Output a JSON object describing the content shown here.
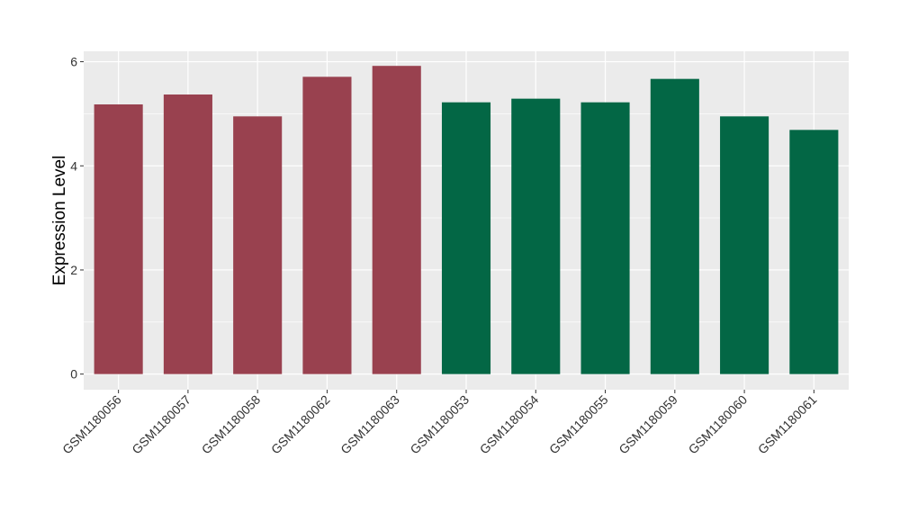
{
  "chart_data": {
    "type": "bar",
    "title": "",
    "xlabel": "",
    "ylabel": "Expression Level",
    "ylim": [
      -0.3,
      6.2
    ],
    "yticks": [
      0,
      2,
      4,
      6
    ],
    "grid": true,
    "legend": "none",
    "categories": [
      "GSM1180056",
      "GSM1180057",
      "GSM1180058",
      "GSM1180062",
      "GSM1180063",
      "GSM1180053",
      "GSM1180054",
      "GSM1180055",
      "GSM1180059",
      "GSM1180060",
      "GSM1180061"
    ],
    "values": [
      5.18,
      5.37,
      4.95,
      5.71,
      5.92,
      5.22,
      5.29,
      5.22,
      5.67,
      4.95,
      4.69
    ],
    "groups": [
      0,
      0,
      0,
      0,
      0,
      1,
      1,
      1,
      1,
      1,
      1
    ],
    "group_colors": [
      "#99414f",
      "#036745"
    ],
    "panel_background": "#ebebeb",
    "grid_color": "#ffffff"
  }
}
